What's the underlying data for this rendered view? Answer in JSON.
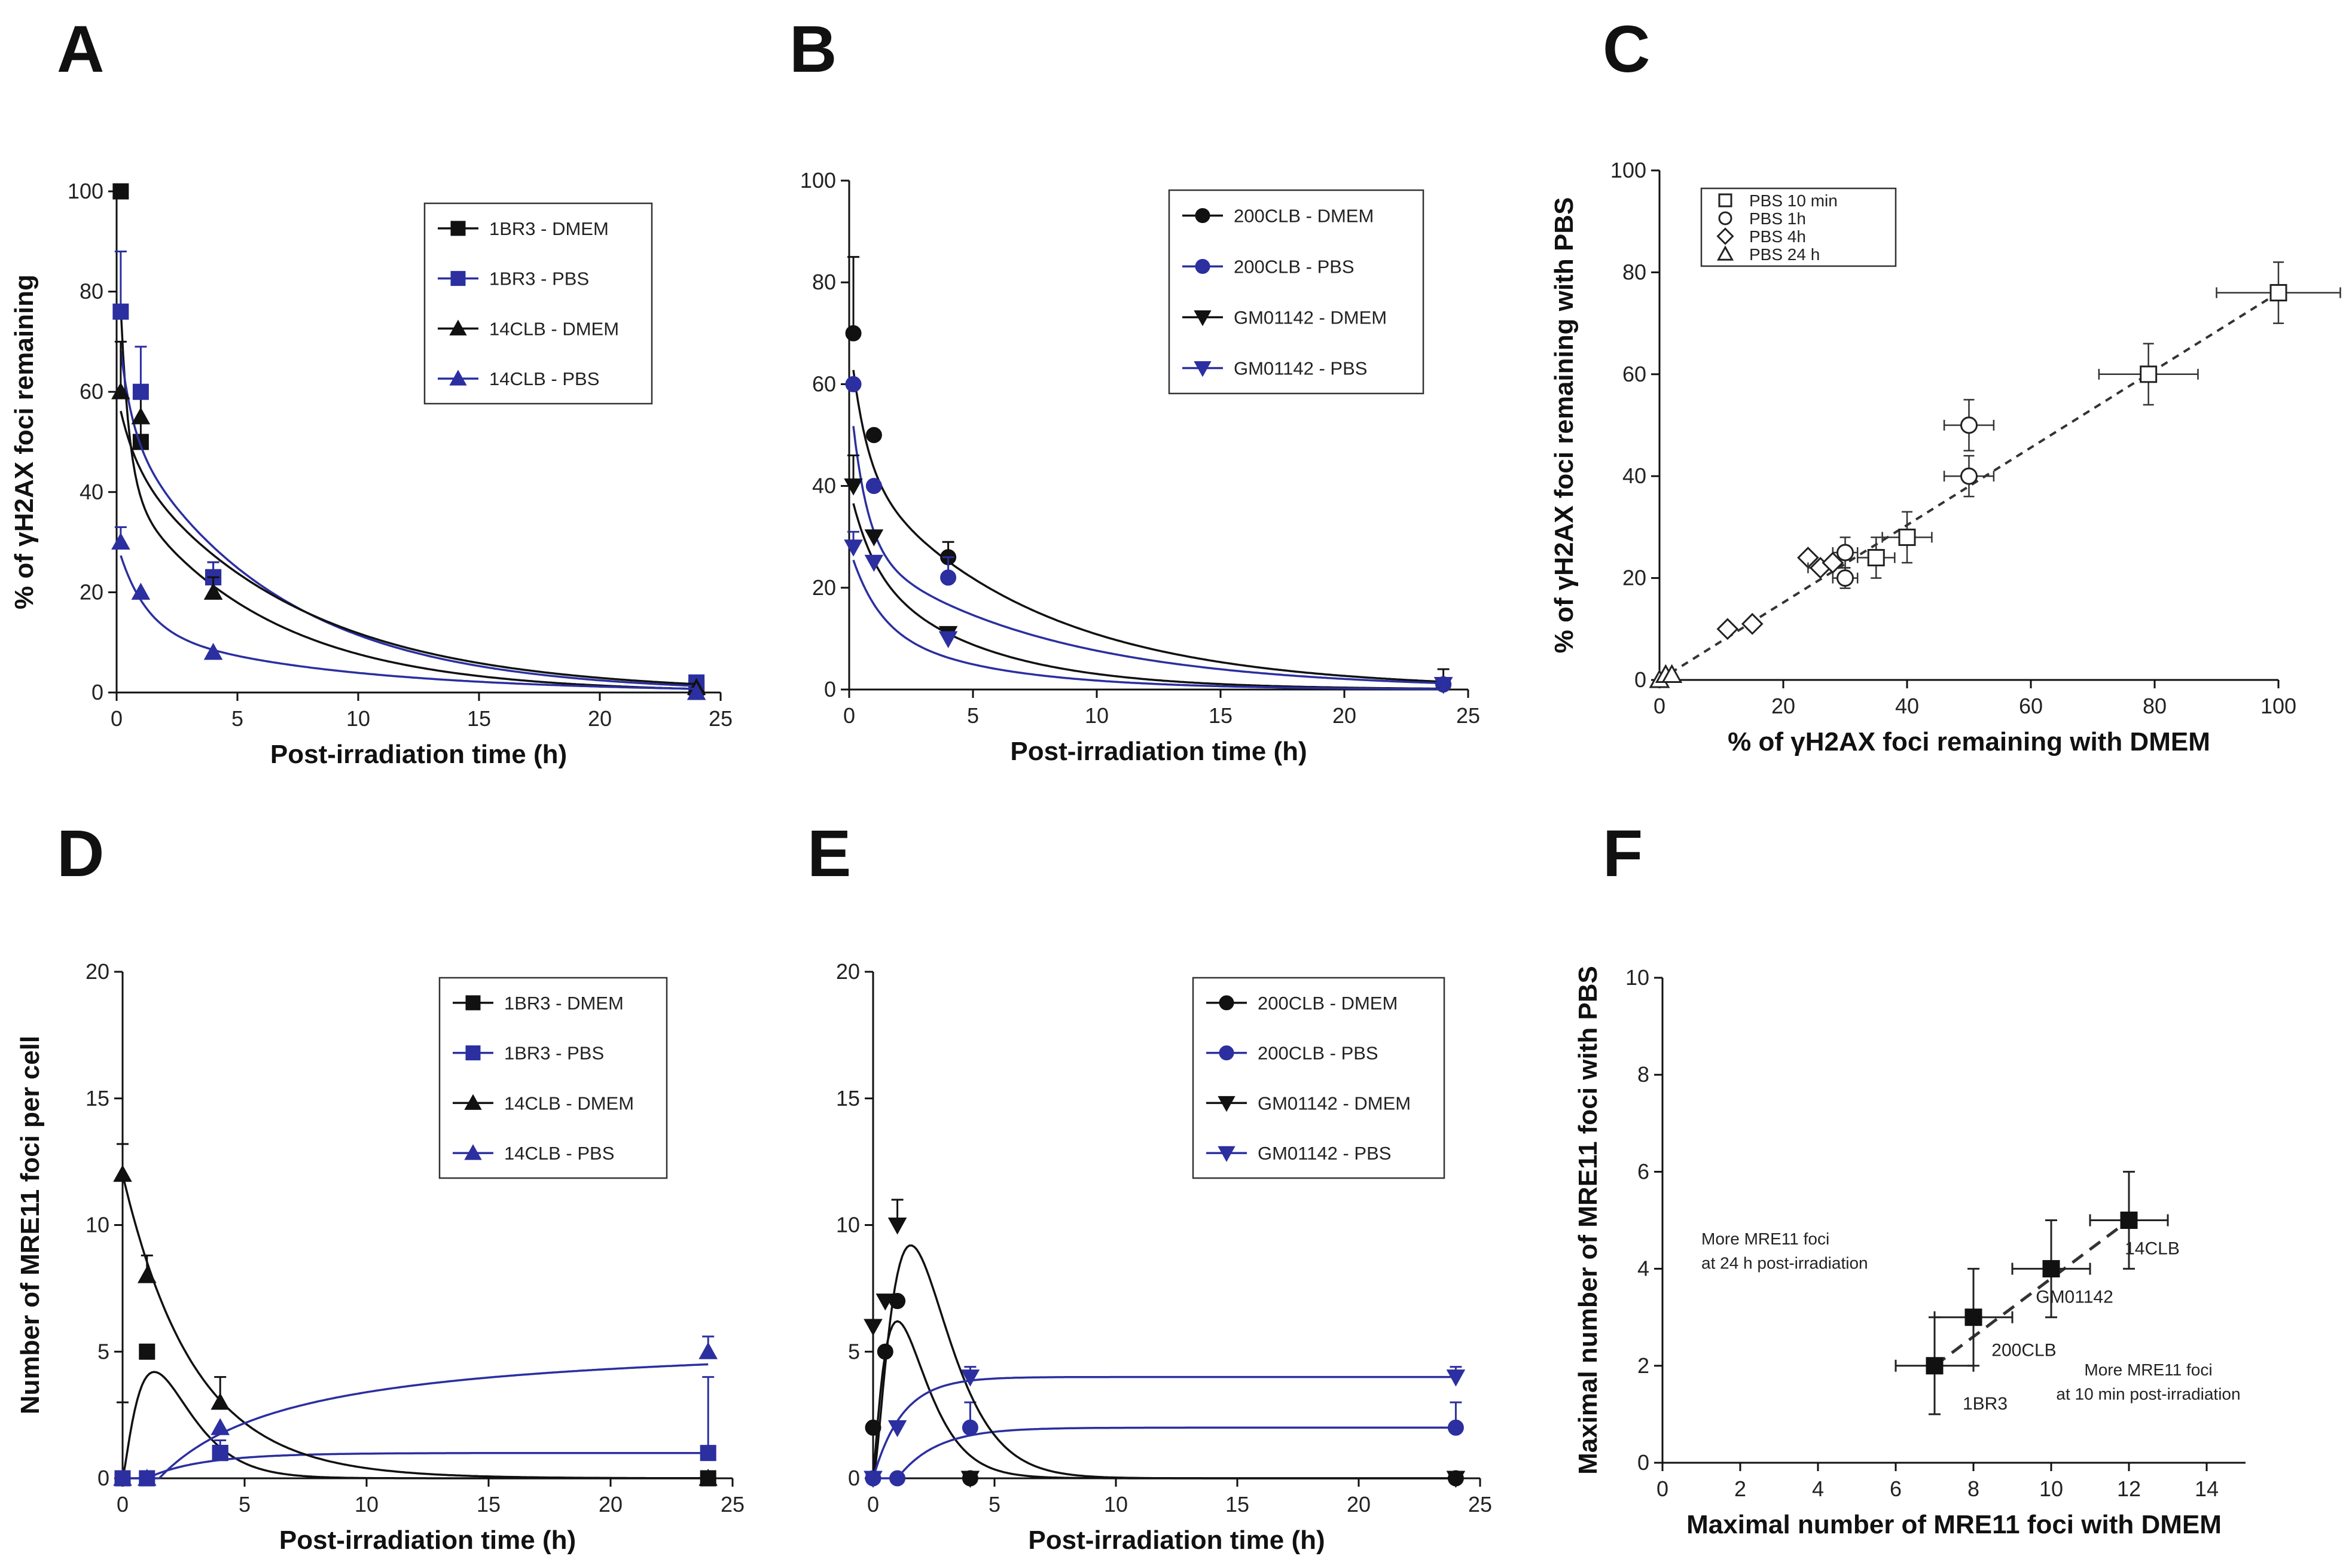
{
  "figure": {
    "panel_letters": [
      "A",
      "B",
      "C",
      "D",
      "E",
      "F"
    ]
  },
  "colors": {
    "black": "#111111",
    "blue": "#2b2fa0",
    "dashed": "#444444"
  },
  "chart_data": [
    {
      "id": "A",
      "type": "line",
      "xlabel": "Post-irradiation time (h)",
      "ylabel": "% of γH2AX foci remaining",
      "xlim": [
        0,
        25
      ],
      "ylim": [
        0,
        100
      ],
      "xticks": [
        0,
        5,
        10,
        15,
        20,
        25
      ],
      "yticks": [
        0,
        20,
        40,
        60,
        80,
        100
      ],
      "legend_position": "top-right",
      "series": [
        {
          "name": "1BR3 - DMEM",
          "color": "#111111",
          "marker": "square",
          "x": [
            0.17,
            1,
            4,
            24
          ],
          "y": [
            100,
            50,
            23,
            1
          ],
          "err": [
            0,
            10,
            3,
            0
          ],
          "curve": {
            "kind": "exp2",
            "A": 58,
            "k1": 2.8,
            "k2": 0.17,
            "c": 0
          }
        },
        {
          "name": "1BR3 - PBS",
          "color": "#2b2fa0",
          "marker": "square",
          "x": [
            0.17,
            1,
            4,
            24
          ],
          "y": [
            76,
            60,
            23,
            2
          ],
          "err": [
            12,
            9,
            3,
            0
          ],
          "curve": {
            "kind": "exp2",
            "A": 22,
            "k1": 2.0,
            "k2": 0.155,
            "c": 0
          }
        },
        {
          "name": "14CLB - DMEM",
          "color": "#111111",
          "marker": "triangle-up",
          "x": [
            0.17,
            1,
            4,
            24
          ],
          "y": [
            60,
            55,
            20,
            1
          ],
          "err": [
            10,
            0,
            3,
            0
          ],
          "curve": {
            "kind": "exp2",
            "A": 12,
            "k1": 1.5,
            "k2": 0.14,
            "c": 0
          }
        },
        {
          "name": "14CLB - PBS",
          "color": "#2b2fa0",
          "marker": "triangle-up",
          "x": [
            0.17,
            1,
            4,
            24
          ],
          "y": [
            30,
            20,
            8,
            0
          ],
          "err": [
            3,
            0,
            0,
            0
          ],
          "curve": {
            "kind": "exp2",
            "A": 17,
            "k1": 0.9,
            "k2": 0.12,
            "c": 0
          }
        }
      ]
    },
    {
      "id": "B",
      "type": "line",
      "xlabel": "Post-irradiation time (h)",
      "ylabel": "",
      "xlim": [
        0,
        25
      ],
      "ylim": [
        0,
        100
      ],
      "xticks": [
        0,
        5,
        10,
        15,
        20,
        25
      ],
      "yticks": [
        0,
        20,
        40,
        60,
        80,
        100
      ],
      "legend_position": "top-right",
      "series": [
        {
          "name": "200CLB - DMEM",
          "color": "#111111",
          "marker": "circle",
          "x": [
            0.17,
            1,
            4,
            24
          ],
          "y": [
            70,
            50,
            26,
            1
          ],
          "err": [
            15,
            0,
            3,
            3
          ],
          "curve": {
            "kind": "exp2",
            "A": 26,
            "k1": 1.6,
            "k2": 0.14,
            "c": 0
          }
        },
        {
          "name": "200CLB - PBS",
          "color": "#2b2fa0",
          "marker": "circle",
          "x": [
            0.17,
            1,
            4,
            24
          ],
          "y": [
            60,
            40,
            22,
            1
          ],
          "err": [
            0,
            0,
            4,
            0
          ],
          "curve": {
            "kind": "exp2",
            "A": 32,
            "k1": 1.6,
            "k2": 0.13,
            "c": 0
          }
        },
        {
          "name": "GM01142 - DMEM",
          "color": "#111111",
          "marker": "triangle-down",
          "x": [
            0.17,
            1,
            4,
            24
          ],
          "y": [
            40,
            30,
            11,
            1
          ],
          "err": [
            6,
            0,
            0,
            0
          ],
          "curve": {
            "kind": "exp2",
            "A": 15,
            "k1": 1.1,
            "k2": 0.21,
            "c": 0
          }
        },
        {
          "name": "GM01142 - PBS",
          "color": "#2b2fa0",
          "marker": "triangle-down",
          "x": [
            0.17,
            1,
            4,
            24
          ],
          "y": [
            28,
            25,
            10,
            1
          ],
          "err": [
            3,
            0,
            0,
            0
          ],
          "curve": {
            "kind": "exp2",
            "A": 15,
            "k1": 0.9,
            "k2": 0.2,
            "c": 0
          }
        }
      ]
    },
    {
      "id": "C",
      "type": "scatter",
      "xlabel": "% of γH2AX foci remaining with DMEM",
      "ylabel": "% of γH2AX foci remaining with PBS",
      "xlim": [
        0,
        100
      ],
      "ylim": [
        0,
        100
      ],
      "xticks": [
        0,
        20,
        40,
        60,
        80,
        100
      ],
      "yticks": [
        0,
        20,
        40,
        60,
        80,
        100
      ],
      "legend_position": "top-left",
      "trendline": {
        "style": "dashed",
        "from": [
          0,
          0
        ],
        "to": [
          100,
          76
        ]
      },
      "series": [
        {
          "name": "PBS 10 min",
          "marker": "square-open",
          "points": [
            [
              100,
              76,
              10,
              6
            ],
            [
              79,
              60,
              8,
              6
            ],
            [
              40,
              28,
              4,
              5
            ],
            [
              35,
              24,
              3,
              4
            ]
          ]
        },
        {
          "name": "PBS 1h",
          "marker": "circle-open",
          "points": [
            [
              50,
              50,
              4,
              5
            ],
            [
              50,
              40,
              4,
              4
            ],
            [
              30,
              25,
              2,
              3
            ],
            [
              30,
              20,
              2,
              2
            ]
          ]
        },
        {
          "name": "PBS 4h",
          "marker": "diamond-open",
          "points": [
            [
              24,
              24,
              0,
              0
            ],
            [
              26,
              22,
              2,
              0
            ],
            [
              28,
              23,
              0,
              0
            ],
            [
              11,
              10,
              0,
              0
            ],
            [
              15,
              11,
              0,
              0
            ]
          ]
        },
        {
          "name": "PBS 24 h",
          "marker": "triangle-open",
          "points": [
            [
              0,
              0,
              0,
              0
            ],
            [
              1,
              1,
              0,
              0
            ],
            [
              2,
              1,
              0,
              0
            ]
          ]
        }
      ]
    },
    {
      "id": "D",
      "type": "line",
      "xlabel": "Post-irradiation time (h)",
      "ylabel": "Number of MRE11 foci per cell",
      "xlim": [
        0,
        25
      ],
      "ylim": [
        0,
        20
      ],
      "xticks": [
        0,
        5,
        10,
        15,
        20,
        25
      ],
      "yticks": [
        0,
        5,
        10,
        15,
        20
      ],
      "legend_position": "top-right",
      "series": [
        {
          "name": "1BR3 - DMEM",
          "color": "#111111",
          "marker": "square",
          "x": [
            0,
            1,
            4,
            24
          ],
          "y": [
            0,
            5,
            1,
            0
          ],
          "err": [
            3,
            0,
            0,
            0
          ],
          "curve": {
            "kind": "gamma",
            "A": 4.2,
            "p": 1.3,
            "tau": 1.3,
            "plateau": 0
          }
        },
        {
          "name": "1BR3 - PBS",
          "color": "#2b2fa0",
          "marker": "square",
          "x": [
            0,
            1,
            4,
            24
          ],
          "y": [
            0,
            0,
            1,
            1
          ],
          "err": [
            0,
            0,
            0.5,
            3
          ],
          "curve": {
            "kind": "rise_plateau",
            "A": 1.15,
            "t0": 1.0,
            "tau": 2.5,
            "decay": 0.5,
            "plateau": 1
          }
        },
        {
          "name": "14CLB - DMEM",
          "color": "#111111",
          "marker": "triangle-up",
          "x": [
            0,
            1,
            4,
            24
          ],
          "y": [
            12,
            8,
            3,
            0
          ],
          "err": [
            1.2,
            0.8,
            1.0,
            0
          ],
          "curve": {
            "kind": "exp",
            "A": 12,
            "k": 0.34,
            "c": 0
          }
        },
        {
          "name": "14CLB - PBS",
          "color": "#2b2fa0",
          "marker": "triangle-up",
          "x": [
            0,
            1,
            4,
            24
          ],
          "y": [
            0,
            0,
            2,
            5
          ],
          "err": [
            0,
            0,
            0,
            0.6
          ],
          "curve": {
            "kind": "hyper",
            "A": 5.6,
            "t0": 1.5,
            "K": 5.5
          }
        }
      ]
    },
    {
      "id": "E",
      "type": "line",
      "xlabel": "Post-irradiation time (h)",
      "ylabel": "",
      "xlim": [
        0,
        25
      ],
      "ylim": [
        0,
        20
      ],
      "xticks": [
        0,
        5,
        10,
        15,
        20,
        25
      ],
      "yticks": [
        0,
        5,
        10,
        15,
        20
      ],
      "legend_position": "top-right",
      "series": [
        {
          "name": "200CLB - DMEM",
          "color": "#111111",
          "marker": "circle",
          "x": [
            0,
            0.5,
            1,
            4,
            24
          ],
          "y": [
            2,
            5,
            7,
            0,
            0
          ],
          "err": [
            0,
            0,
            0,
            0,
            0
          ],
          "curve": {
            "kind": "gamma",
            "A": 6.2,
            "p": 1.2,
            "tau": 1.0,
            "plateau": 0
          }
        },
        {
          "name": "200CLB - PBS",
          "color": "#2b2fa0",
          "marker": "circle",
          "x": [
            0,
            1,
            4,
            24
          ],
          "y": [
            0,
            0,
            2,
            2
          ],
          "err": [
            0,
            0,
            1,
            1
          ],
          "curve": {
            "kind": "rise_plateau",
            "A": 2.0,
            "t0": 1.0,
            "tau": 1.6,
            "decay": 0,
            "plateau": 2
          }
        },
        {
          "name": "GM01142 - DMEM",
          "color": "#111111",
          "marker": "triangle-down",
          "x": [
            0,
            0.5,
            1,
            4,
            24
          ],
          "y": [
            6,
            7,
            10,
            0,
            0
          ],
          "err": [
            0,
            0,
            1,
            0,
            0
          ],
          "curve": {
            "kind": "gamma",
            "A": 9.2,
            "p": 1.6,
            "tau": 1.55,
            "plateau": 0
          }
        },
        {
          "name": "GM01142 - PBS",
          "color": "#2b2fa0",
          "marker": "triangle-down",
          "x": [
            0,
            1,
            4,
            24
          ],
          "y": [
            0,
            2,
            4,
            4
          ],
          "err": [
            0,
            0,
            0.4,
            0.4
          ],
          "curve": {
            "kind": "rise_plateau",
            "A": 4.0,
            "t0": 0.0,
            "tau": 1.2,
            "decay": 0,
            "plateau": 4
          }
        }
      ]
    },
    {
      "id": "F",
      "type": "scatter",
      "xlabel": "Maximal number of MRE11 foci with DMEM",
      "ylabel": "Maximal number of MRE11 foci with PBS",
      "xlim": [
        0,
        15
      ],
      "ylim": [
        0,
        10
      ],
      "xticks": [
        0,
        2,
        4,
        6,
        8,
        10,
        12,
        14
      ],
      "yticks": [
        0,
        2,
        4,
        6,
        8,
        10
      ],
      "trendline": {
        "style": "dashed",
        "from": [
          7,
          2
        ],
        "to": [
          12,
          5
        ]
      },
      "annotations": [
        {
          "text": "More MRE11 foci",
          "at": [
            1,
            4.5
          ]
        },
        {
          "text": "at 24 h post-irradiation",
          "at": [
            1,
            4.0
          ]
        },
        {
          "text": "More MRE11 foci",
          "at": [
            12.5,
            1.8
          ]
        },
        {
          "text": "at 10 min post-irradiation",
          "at": [
            12.5,
            1.3
          ]
        }
      ],
      "points": [
        {
          "label": "1BR3",
          "x": 7,
          "y": 2,
          "xerr": 1,
          "yerr": 1,
          "label_at": [
            8.3,
            1.1
          ]
        },
        {
          "label": "200CLB",
          "x": 8,
          "y": 3,
          "xerr": 1,
          "yerr": 1,
          "label_at": [
            9.3,
            2.2
          ]
        },
        {
          "label": "GM01142",
          "x": 10,
          "y": 4,
          "xerr": 1,
          "yerr": 1,
          "label_at": [
            10.6,
            3.3
          ]
        },
        {
          "label": "14CLB",
          "x": 12,
          "y": 5,
          "xerr": 1,
          "yerr": 1,
          "label_at": [
            12.6,
            4.3
          ]
        }
      ]
    }
  ]
}
